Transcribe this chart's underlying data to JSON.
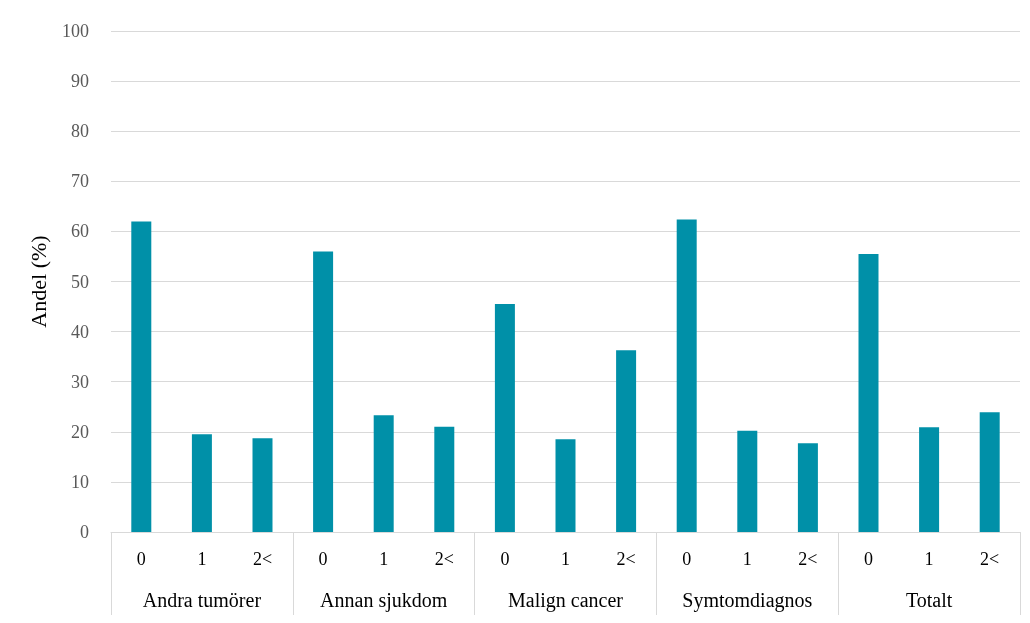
{
  "chart_data": {
    "type": "bar",
    "ylabel": "Andel (%)",
    "categories": [
      "0",
      "1",
      "2<",
      "0",
      "1",
      "2<",
      "0",
      "1",
      "2<",
      "0",
      "1",
      "2<",
      "0",
      "1",
      "2<"
    ],
    "values": [
      62,
      19.5,
      18.7,
      56,
      23.3,
      21,
      45.5,
      18.5,
      36.3,
      62.4,
      20.2,
      17.7,
      55.5,
      20.9,
      23.9
    ],
    "color": "#0090a8",
    "annotations": [
      "Andra tumörer",
      "Annan sjukdom",
      "Malign cancer",
      "Symtomdiagnos",
      "Totalt"
    ],
    "ylim": [
      0,
      100
    ],
    "yticks": [
      0,
      10,
      20,
      30,
      40,
      50,
      60,
      70,
      80,
      90,
      100
    ],
    "grid": "y"
  }
}
